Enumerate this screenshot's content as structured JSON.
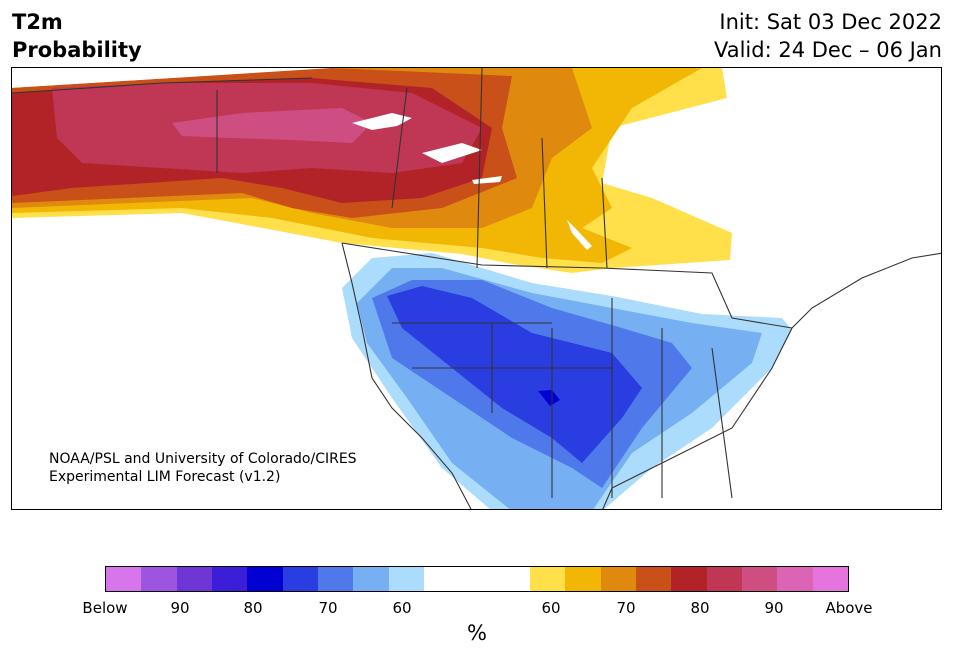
{
  "title": {
    "line1": "T2m",
    "line2": "Probability"
  },
  "dates": {
    "init": "Init: Sat 03 Dec 2022",
    "valid": "Valid: 24 Dec – 06 Jan"
  },
  "credit": {
    "line1": "NOAA/PSL and University of Colorado/CIRES",
    "line2": "Experimental LIM Forecast (v1.2)"
  },
  "colorbar": {
    "colors": [
      "#d776ea",
      "#9d54e0",
      "#6e36d4",
      "#3a1ed8",
      "#0000d2",
      "#2a3de0",
      "#4f79eb",
      "#76b0f2",
      "#acdcfb",
      "#ffffff",
      "#ffe04b",
      "#f2b705",
      "#df8a0f",
      "#c95018",
      "#b22327",
      "#c03755",
      "#cf4e82",
      "#dc64b5",
      "#e574dd"
    ],
    "ticks": [
      "Below",
      "90",
      "80",
      "70",
      "60",
      "60",
      "70",
      "80",
      "90",
      "Above"
    ],
    "unit": "%"
  }
}
